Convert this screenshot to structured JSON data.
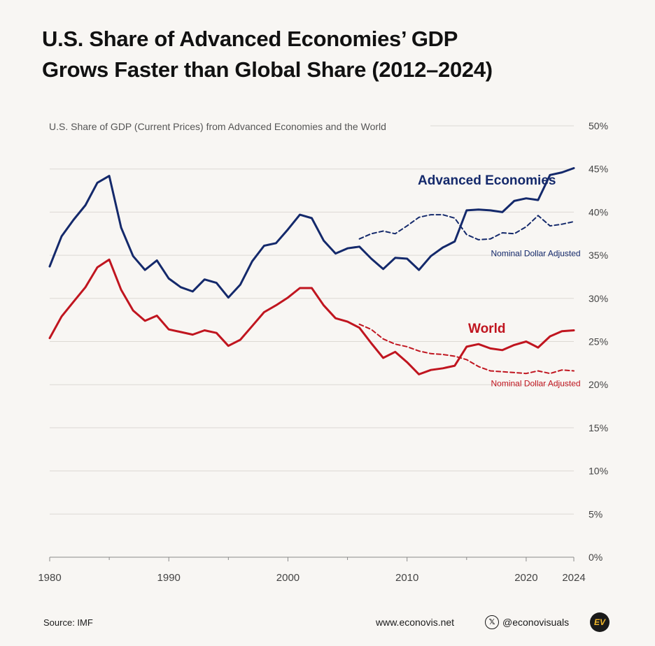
{
  "title_line1": "U.S. Share of Advanced Economies’ GDP",
  "title_line2": "Grows Faster than Global Share (2012–2024)",
  "footer": {
    "source": "Source: IMF",
    "website": "www.econovis.net",
    "handle": "@econovisuals",
    "logo_text": "EV"
  },
  "chart_data": {
    "type": "line",
    "subtitle": "U.S. Share of GDP (Current Prices) from Advanced Economies and the World",
    "x_ticks": [
      1980,
      1990,
      2000,
      2010,
      2020,
      2024
    ],
    "y_ticks": [
      "0%",
      "5%",
      "10%",
      "15%",
      "20%",
      "25%",
      "30%",
      "35%",
      "40%",
      "45%",
      "50%"
    ],
    "xlim": [
      1980,
      2024
    ],
    "ylim": [
      0,
      50
    ],
    "grid": true,
    "series": [
      {
        "name": "Advanced Economies",
        "label": "Advanced Economies",
        "color": "#14296b",
        "style": "solid",
        "x": [
          1980,
          1981,
          1982,
          1983,
          1984,
          1985,
          1986,
          1987,
          1988,
          1989,
          1990,
          1991,
          1992,
          1993,
          1994,
          1995,
          1996,
          1997,
          1998,
          1999,
          2000,
          2001,
          2002,
          2003,
          2004,
          2005,
          2006,
          2007,
          2008,
          2009,
          2010,
          2011,
          2012,
          2013,
          2014,
          2015,
          2016,
          2017,
          2018,
          2019,
          2020,
          2021,
          2022,
          2023,
          2024
        ],
        "values": [
          33.7,
          37.2,
          39.1,
          40.8,
          43.4,
          44.2,
          38.2,
          34.9,
          33.3,
          34.4,
          32.3,
          31.3,
          30.8,
          32.2,
          31.8,
          30.1,
          31.6,
          34.3,
          36.1,
          36.4,
          38.0,
          39.7,
          39.3,
          36.7,
          35.2,
          35.8,
          36.0,
          34.6,
          33.4,
          34.7,
          34.6,
          33.3,
          34.9,
          35.9,
          36.6,
          40.2,
          40.3,
          40.2,
          40.0,
          41.3,
          41.6,
          41.4,
          44.3,
          44.6,
          45.1
        ]
      },
      {
        "name": "Advanced Economies (Nominal Dollar Adjusted)",
        "label": "Nominal Dollar Adjusted",
        "color": "#14296b",
        "style": "dashed",
        "x": [
          2006,
          2007,
          2008,
          2009,
          2010,
          2011,
          2012,
          2013,
          2014,
          2015,
          2016,
          2017,
          2018,
          2019,
          2020,
          2021,
          2022,
          2023,
          2024
        ],
        "values": [
          36.9,
          37.5,
          37.8,
          37.5,
          38.4,
          39.4,
          39.7,
          39.7,
          39.3,
          37.4,
          36.8,
          36.9,
          37.6,
          37.5,
          38.3,
          39.6,
          38.4,
          38.6,
          38.9
        ]
      },
      {
        "name": "World",
        "label": "World",
        "color": "#c0151f",
        "style": "solid",
        "x": [
          1980,
          1981,
          1982,
          1983,
          1984,
          1985,
          1986,
          1987,
          1988,
          1989,
          1990,
          1991,
          1992,
          1993,
          1994,
          1995,
          1996,
          1997,
          1998,
          1999,
          2000,
          2001,
          2002,
          2003,
          2004,
          2005,
          2006,
          2007,
          2008,
          2009,
          2010,
          2011,
          2012,
          2013,
          2014,
          2015,
          2016,
          2017,
          2018,
          2019,
          2020,
          2021,
          2022,
          2023,
          2024
        ],
        "values": [
          25.4,
          27.9,
          29.6,
          31.3,
          33.6,
          34.5,
          31.0,
          28.6,
          27.4,
          28.0,
          26.4,
          26.1,
          25.8,
          26.3,
          26.0,
          24.5,
          25.2,
          26.8,
          28.4,
          29.2,
          30.1,
          31.2,
          31.2,
          29.2,
          27.7,
          27.3,
          26.6,
          24.8,
          23.1,
          23.8,
          22.6,
          21.2,
          21.7,
          21.9,
          22.2,
          24.4,
          24.7,
          24.2,
          24.0,
          24.6,
          25.0,
          24.3,
          25.6,
          26.2,
          26.3
        ]
      },
      {
        "name": "World (Nominal Dollar Adjusted)",
        "label": "Nominal Dollar Adjusted",
        "color": "#c0151f",
        "style": "dashed",
        "x": [
          2006,
          2007,
          2008,
          2009,
          2010,
          2011,
          2012,
          2013,
          2014,
          2015,
          2016,
          2017,
          2018,
          2019,
          2020,
          2021,
          2022,
          2023,
          2024
        ],
        "values": [
          27.0,
          26.4,
          25.3,
          24.7,
          24.4,
          23.9,
          23.6,
          23.5,
          23.3,
          22.9,
          22.1,
          21.6,
          21.5,
          21.4,
          21.3,
          21.6,
          21.3,
          21.7,
          21.6
        ]
      }
    ]
  }
}
